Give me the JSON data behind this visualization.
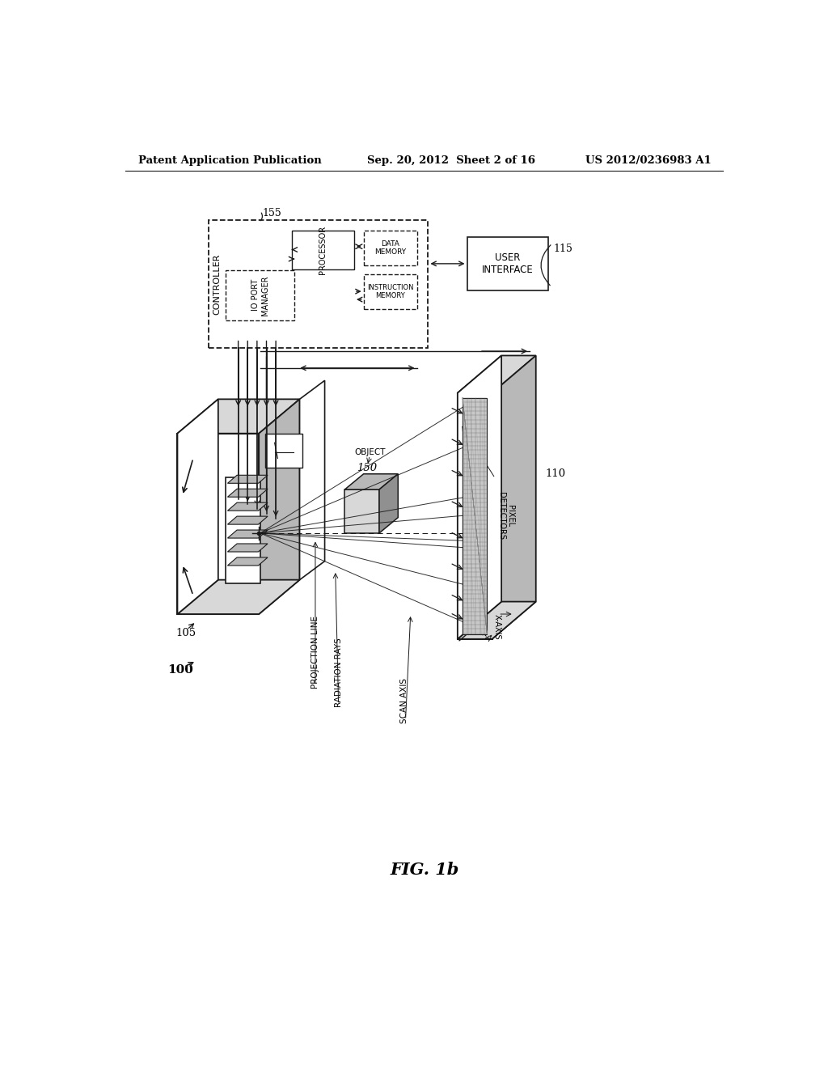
{
  "bg_color": "#ffffff",
  "header_left": "Patent Application Publication",
  "header_center": "Sep. 20, 2012  Sheet 2 of 16",
  "header_right": "US 2012/0236983 A1",
  "figure_label": "FIG. 1b",
  "line_color": "#1a1a1a",
  "gray_light": "#d8d8d8",
  "gray_mid": "#b8b8b8",
  "gray_dark": "#909090",
  "hatch_color": "#555555"
}
